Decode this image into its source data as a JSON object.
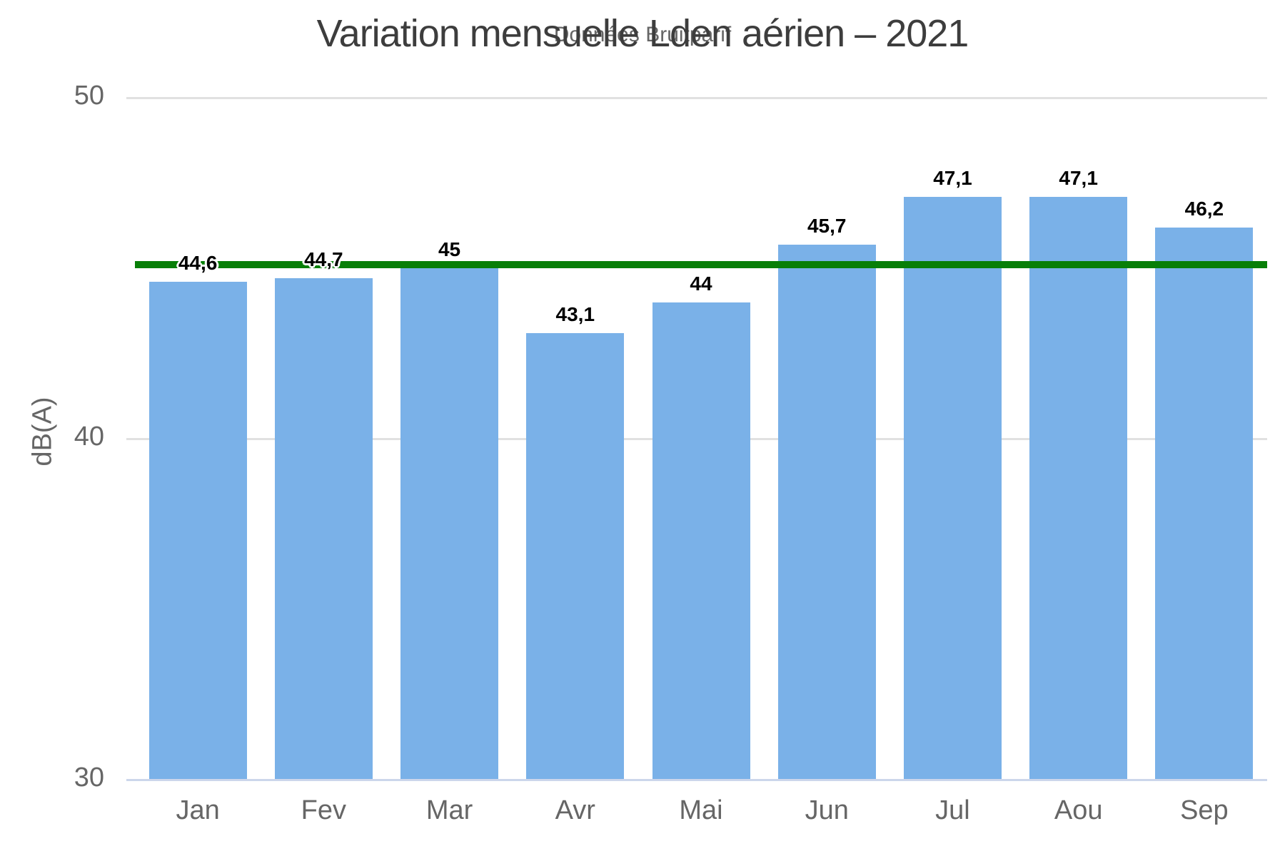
{
  "chart_data": {
    "type": "bar",
    "title": "Variation mensuelle Lden aérien – 2021",
    "subtitle": "Données Bruitparif",
    "ylabel": "dB(A)",
    "xlabel": "",
    "categories": [
      "Jan",
      "Fev",
      "Mar",
      "Avr",
      "Mai",
      "Jun",
      "Jul",
      "Aou",
      "Sep"
    ],
    "values": [
      44.6,
      44.7,
      45,
      43.1,
      44,
      45.7,
      47.1,
      47.1,
      46.2
    ],
    "value_labels": [
      "44,6",
      "44,7",
      "45",
      "43,1",
      "44",
      "45,7",
      "47,1",
      "47,1",
      "46,2"
    ],
    "ylim": [
      30,
      50
    ],
    "yticks": [
      30,
      40,
      50
    ],
    "grid": true,
    "legend": "none",
    "reference_line": {
      "value": 45.1
    },
    "colors": {
      "bar": "#7ab1e8",
      "reference_line": "#087f08",
      "title": "#3d3d3d",
      "subtitle": "#666666",
      "axis_text": "#666666",
      "gridline": "#e1e1e1",
      "axis_line": "#ccd6eb",
      "data_label": "#000000"
    }
  }
}
